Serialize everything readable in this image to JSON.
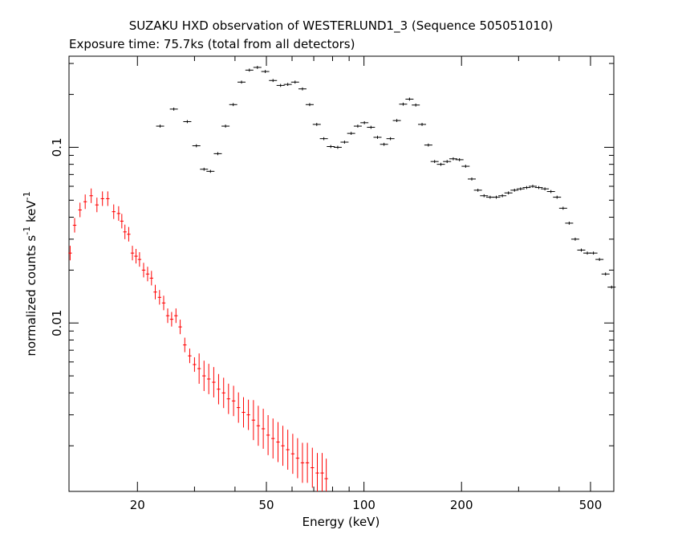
{
  "chart_data": {
    "type": "scatter",
    "title": "SUZAKU HXD observation of WESTERLUND1_3 (Sequence 505051010)",
    "subtitle": "Exposure time: 75.7ks (total from all detectors)",
    "xlabel": "Energy (keV)",
    "ylabel_main": "normalized counts s",
    "ylabel_sup1": "-1",
    "ylabel_mid": " keV",
    "ylabel_sup2": "-1",
    "x_scale": "log",
    "y_scale": "log",
    "xlim": [
      12.3,
      590
    ],
    "ylim": [
      0.0011,
      0.33
    ],
    "x_ticks": [
      {
        "value": 20,
        "label": "20"
      },
      {
        "value": 50,
        "label": "50"
      },
      {
        "value": 100,
        "label": "100"
      },
      {
        "value": 200,
        "label": "200"
      },
      {
        "value": 500,
        "label": "500"
      }
    ],
    "y_ticks": [
      {
        "value": 0.01,
        "label": "0.01"
      },
      {
        "value": 0.1,
        "label": "0.1"
      }
    ],
    "grid": false,
    "colors": {
      "pin": "#ff0000",
      "gso": "#000000"
    },
    "series": [
      {
        "color": "#ff0000",
        "x": [
          12.4,
          12.8,
          13.3,
          13.8,
          14.4,
          15.0,
          15.6,
          16.2,
          16.9,
          17.5,
          17.9,
          18.3,
          18.8,
          19.3,
          19.8,
          20.3,
          20.9,
          21.5,
          22.1,
          22.7,
          23.4,
          24.1,
          24.8,
          25.5,
          26.3,
          27.1,
          28.0,
          29.0,
          30.0,
          31.0,
          32.1,
          33.2,
          34.4,
          35.6,
          36.9,
          38.2,
          39.6,
          41.0,
          42.5,
          44.0,
          45.6,
          47.2,
          48.9,
          50.6,
          52.4,
          54.3,
          56.2,
          58.2,
          60.3,
          62.4,
          64.6,
          66.9,
          69.3,
          71.8,
          74.3,
          76.5
        ],
        "y": [
          0.025,
          0.036,
          0.044,
          0.049,
          0.053,
          0.047,
          0.051,
          0.051,
          0.043,
          0.042,
          0.038,
          0.033,
          0.032,
          0.025,
          0.024,
          0.023,
          0.02,
          0.019,
          0.018,
          0.015,
          0.014,
          0.013,
          0.011,
          0.0105,
          0.011,
          0.0095,
          0.0075,
          0.0065,
          0.0058,
          0.0055,
          0.005,
          0.0048,
          0.0046,
          0.0042,
          0.004,
          0.0037,
          0.0036,
          0.0033,
          0.0031,
          0.003,
          0.0028,
          0.0026,
          0.0025,
          0.0023,
          0.0022,
          0.0021,
          0.002,
          0.0019,
          0.0018,
          0.0017,
          0.0016,
          0.0016,
          0.0015,
          0.0014,
          0.0014,
          0.0013
        ]
      },
      {
        "color": "#000000",
        "x": [
          23.5,
          25.9,
          28.5,
          30.4,
          32.1,
          33.6,
          35.4,
          37.4,
          39.5,
          41.9,
          44.3,
          46.9,
          49.6,
          52.4,
          55.3,
          58.2,
          61.3,
          64.6,
          68.0,
          71.5,
          75.2,
          79.0,
          83.0,
          87.1,
          91.3,
          95.7,
          100.3,
          105.1,
          110.1,
          115.3,
          120.7,
          126.3,
          132.1,
          138.2,
          144.5,
          151.1,
          158.0,
          165.2,
          172.7,
          180.5,
          188.6,
          197.1,
          205.9,
          215.1,
          224.7,
          234.7,
          245.1,
          256.0,
          267.3,
          279.1,
          291.4,
          304.3,
          317.7,
          331.7,
          346.3,
          361.6,
          377.5,
          394.2,
          411.6,
          429.7,
          448.6,
          468.3,
          488.9,
          510.5,
          532.9,
          556.4,
          580.8
        ],
        "y": [
          0.132,
          0.165,
          0.14,
          0.102,
          0.075,
          0.073,
          0.092,
          0.132,
          0.175,
          0.235,
          0.275,
          0.285,
          0.27,
          0.24,
          0.225,
          0.228,
          0.235,
          0.215,
          0.175,
          0.135,
          0.112,
          0.101,
          0.1,
          0.107,
          0.12,
          0.132,
          0.138,
          0.13,
          0.114,
          0.104,
          0.112,
          0.142,
          0.176,
          0.188,
          0.174,
          0.135,
          0.103,
          0.083,
          0.08,
          0.083,
          0.086,
          0.085,
          0.078,
          0.066,
          0.057,
          0.053,
          0.052,
          0.052,
          0.053,
          0.055,
          0.057,
          0.058,
          0.059,
          0.06,
          0.059,
          0.058,
          0.056,
          0.052,
          0.045,
          0.037,
          0.03,
          0.026,
          0.025,
          0.025,
          0.023,
          0.019,
          0.016
        ]
      }
    ]
  }
}
